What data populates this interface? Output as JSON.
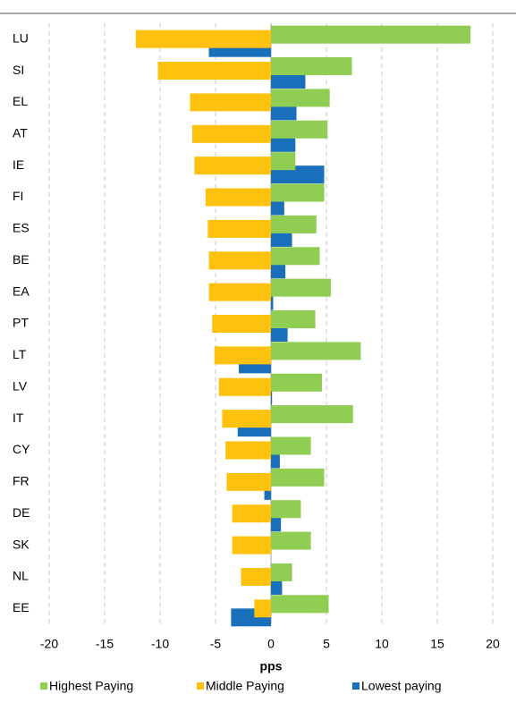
{
  "chart_data": {
    "type": "hbar",
    "x_label": "pps",
    "categories": [
      "LU",
      "SI",
      "EL",
      "AT",
      "IE",
      "FI",
      "ES",
      "BE",
      "EA",
      "PT",
      "LT",
      "LV",
      "IT",
      "CY",
      "FR",
      "DE",
      "SK",
      "NL",
      "EE"
    ],
    "series": [
      {
        "name": "Highest Paying",
        "color": "#8fce52",
        "values": [
          18.0,
          7.3,
          5.3,
          5.1,
          2.2,
          4.8,
          4.1,
          4.4,
          5.4,
          4.0,
          8.1,
          4.6,
          7.4,
          3.6,
          4.8,
          2.7,
          3.6,
          1.9,
          5.2
        ]
      },
      {
        "name": "Middle Paying",
        "color": "#fec10e",
        "values": [
          -12.2,
          -10.2,
          -7.3,
          -7.1,
          -6.9,
          -5.9,
          -5.7,
          -5.6,
          -5.6,
          -5.3,
          -5.1,
          -4.7,
          -4.4,
          -4.1,
          -4.0,
          -3.5,
          -3.5,
          -2.7,
          -1.5
        ]
      },
      {
        "name": "Lowest paying",
        "color": "#1a6fba",
        "values": [
          -5.6,
          3.1,
          2.3,
          2.2,
          4.8,
          1.2,
          1.9,
          1.3,
          0.2,
          1.5,
          -2.9,
          0.1,
          -3.0,
          0.8,
          -0.6,
          0.9,
          0.0,
          1.0,
          -3.6
        ]
      }
    ],
    "xlim": [
      -20,
      20
    ],
    "xticks": [
      -20,
      -15,
      -10,
      -5,
      0,
      5,
      10,
      15,
      20
    ],
    "grid": true
  }
}
